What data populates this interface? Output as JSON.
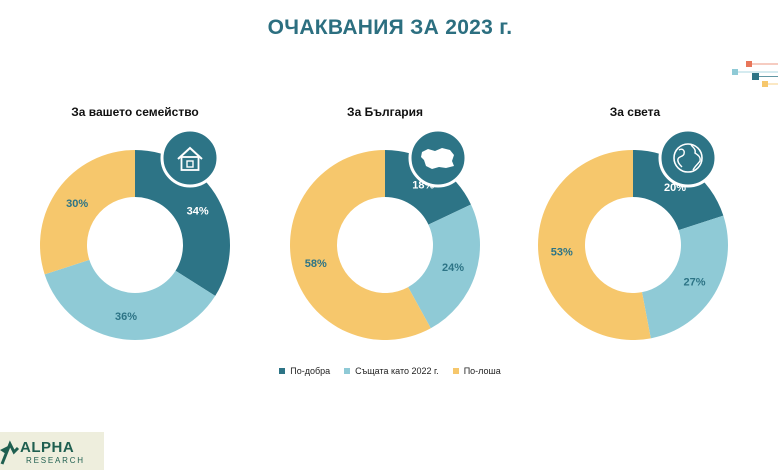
{
  "title": "ОЧАКВАНИЯ ЗА 2023 г.",
  "colors": {
    "better": "#2d7486",
    "same": "#8fcad6",
    "worse": "#f6c76c",
    "accent": "#2c6f80"
  },
  "legend": [
    {
      "label": "По-добра",
      "key": "better"
    },
    {
      "label": "Същата като 2022 г.",
      "key": "same"
    },
    {
      "label": "По-лоша",
      "key": "worse"
    }
  ],
  "chart_data": [
    {
      "type": "pie",
      "title": "За вашето семейство",
      "icon": "house-icon",
      "categories": [
        "По-добра",
        "Същата като 2022 г.",
        "По-лоша"
      ],
      "values": [
        34,
        36,
        30
      ],
      "labels": [
        "34%",
        "36%",
        "30%"
      ]
    },
    {
      "type": "pie",
      "title": "За България",
      "icon": "bulgaria-map-icon",
      "categories": [
        "По-добра",
        "Същата като 2022 г.",
        "По-лоша"
      ],
      "values": [
        18,
        24,
        58
      ],
      "labels": [
        "18%",
        "24%",
        "58%"
      ]
    },
    {
      "type": "pie",
      "title": "За света",
      "icon": "globe-icon",
      "categories": [
        "По-добра",
        "Същата като 2022 г.",
        "По-лоша"
      ],
      "values": [
        20,
        27,
        53
      ],
      "labels": [
        "20%",
        "27%",
        "53%"
      ]
    }
  ],
  "logo": {
    "name": "ALPHA",
    "tagline": "RESEARCH"
  }
}
